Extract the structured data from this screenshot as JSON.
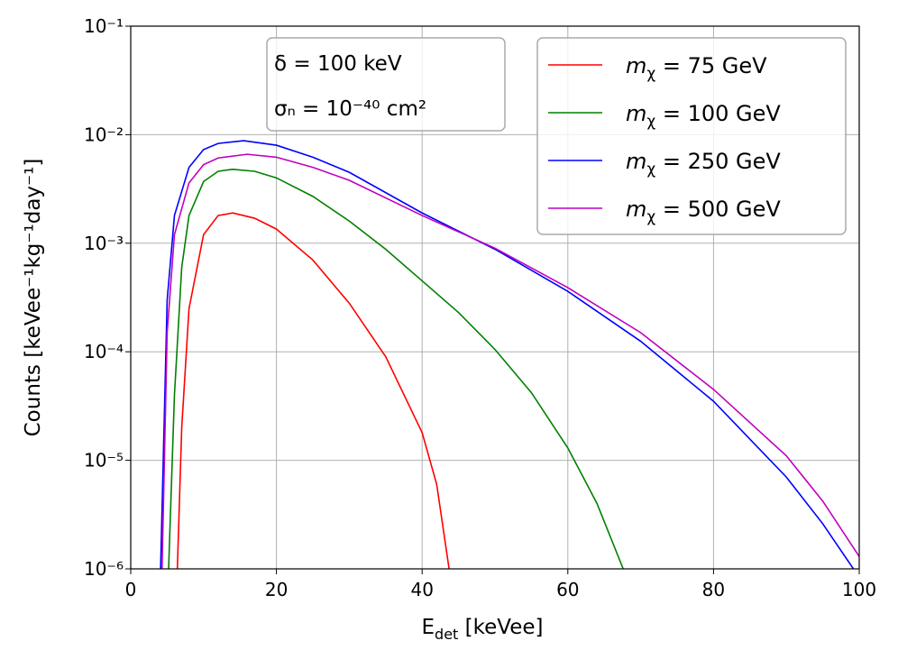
{
  "chart_data": {
    "type": "line",
    "ylabel": "Counts [keVee⁻¹kg⁻¹day⁻¹]",
    "xlabel": {
      "main": "E",
      "sub": "det",
      "unit": " [keVee]"
    },
    "annotations": [
      "δ = 100 keV",
      "σₙ = 10⁻⁴⁰ cm²"
    ],
    "xlim": [
      0,
      100
    ],
    "xticks": [
      0,
      20,
      40,
      60,
      80,
      100
    ],
    "ylim": [
      1e-06,
      0.1
    ],
    "log_y": true,
    "grid": true,
    "legend": "upper right",
    "yticks": [
      {
        "value": 1e-06,
        "label": "10⁻⁶"
      },
      {
        "value": 1e-05,
        "label": "10⁻⁵"
      },
      {
        "value": 0.0001,
        "label": "10⁻⁴"
      },
      {
        "value": 0.001,
        "label": "10⁻³"
      },
      {
        "value": 0.01,
        "label": "10⁻²"
      },
      {
        "value": 0.1,
        "label": "10⁻¹"
      }
    ],
    "series": [
      {
        "name": "mχ = 75 GeV",
        "color": "#ff0000",
        "x": [
          6.4,
          7,
          8,
          10,
          12,
          14,
          17,
          20,
          25,
          30,
          35,
          40,
          42,
          43.7
        ],
        "values": [
          1e-06,
          2e-05,
          0.00025,
          0.0012,
          0.0018,
          0.0019,
          0.0017,
          0.00135,
          0.0007,
          0.00028,
          9e-05,
          1.8e-05,
          6e-06,
          1e-06
        ]
      },
      {
        "name": "mχ = 100 GeV",
        "color": "#008000",
        "x": [
          5.2,
          6,
          7,
          8,
          10,
          12,
          14,
          17,
          20,
          25,
          30,
          35,
          40,
          45,
          50,
          55,
          60,
          64,
          67.6
        ],
        "values": [
          1e-06,
          4e-05,
          0.0006,
          0.0018,
          0.0037,
          0.0046,
          0.0048,
          0.0046,
          0.004,
          0.0027,
          0.0016,
          0.00088,
          0.00045,
          0.00023,
          0.000105,
          4.2e-05,
          1.3e-05,
          4e-06,
          1e-06
        ]
      },
      {
        "name": "mχ = 250 GeV",
        "color": "#0000ff",
        "x": [
          4.1,
          5,
          6,
          8,
          10,
          12,
          15.5,
          20,
          25,
          30,
          40,
          50,
          60,
          70,
          80,
          90,
          95,
          99.2
        ],
        "values": [
          1e-06,
          0.0003,
          0.0018,
          0.005,
          0.0073,
          0.0083,
          0.0088,
          0.008,
          0.0062,
          0.0045,
          0.0019,
          0.00088,
          0.00036,
          0.000125,
          3.5e-05,
          7e-06,
          2.6e-06,
          1e-06
        ]
      },
      {
        "name": "mχ = 500 GeV",
        "color": "#bf00bf",
        "x": [
          4.3,
          5,
          6,
          8,
          10,
          12,
          16,
          20,
          25,
          30,
          40,
          50,
          60,
          70,
          80,
          90,
          95,
          100
        ],
        "values": [
          1e-06,
          0.00015,
          0.0012,
          0.0036,
          0.0053,
          0.0061,
          0.0066,
          0.0062,
          0.005,
          0.0038,
          0.0018,
          0.0009,
          0.00039,
          0.00015,
          4.5e-05,
          1.1e-05,
          4.2e-06,
          1.3e-06
        ]
      }
    ]
  }
}
